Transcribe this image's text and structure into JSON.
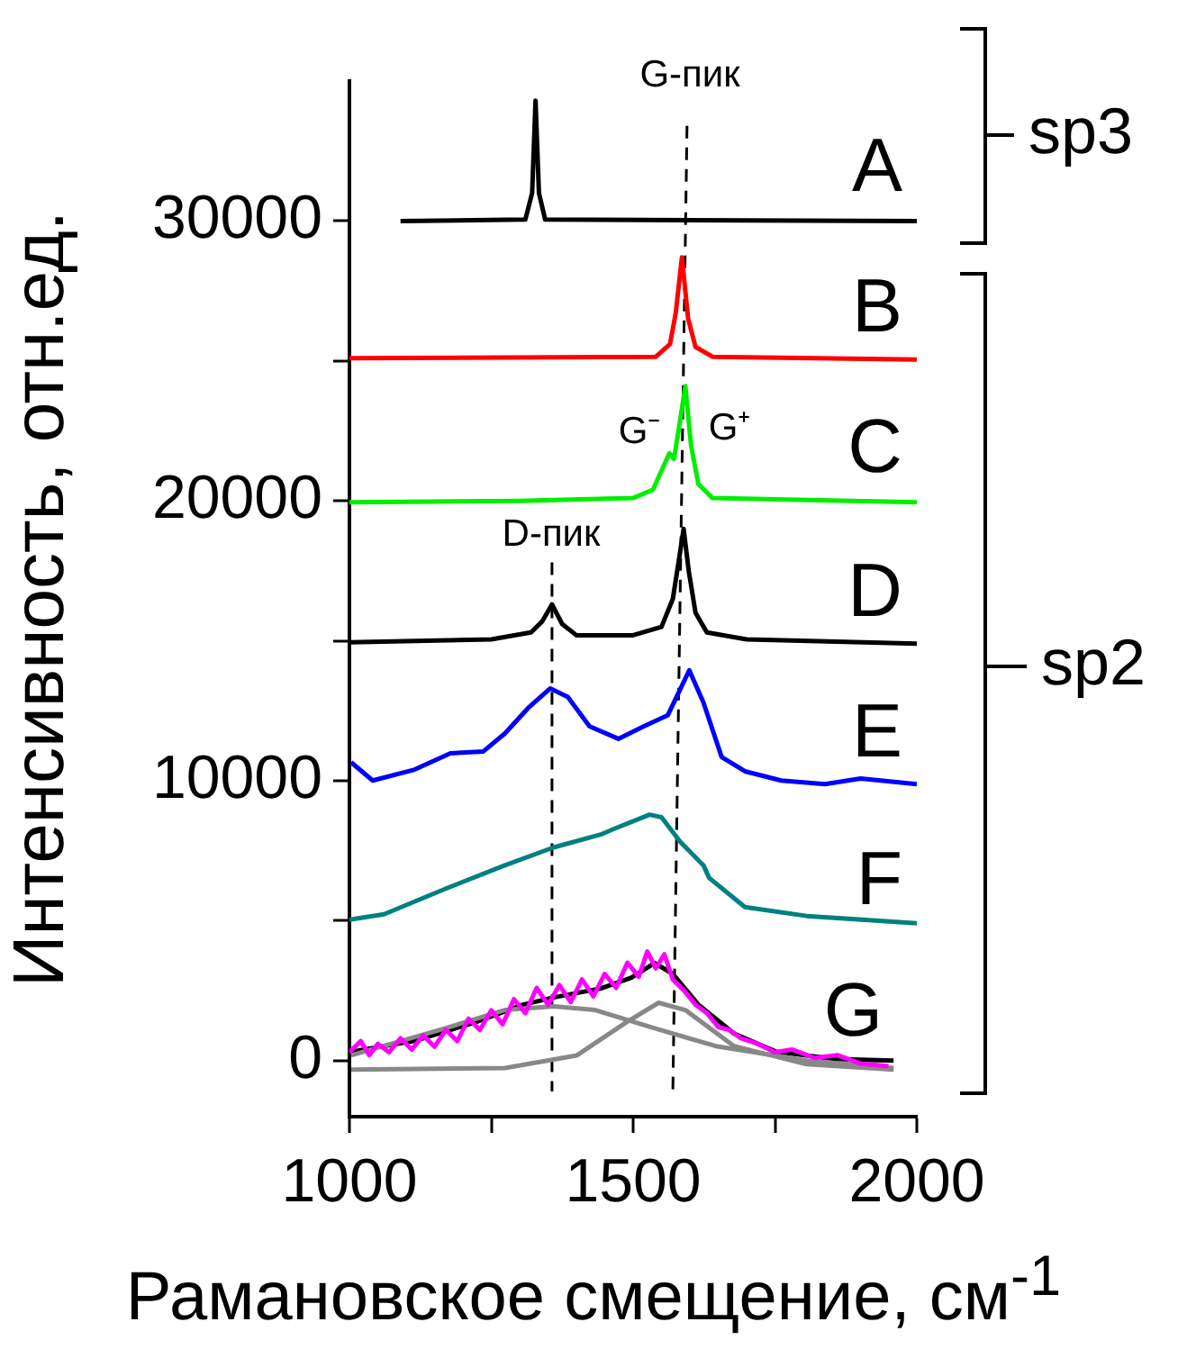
{
  "chart_data": {
    "type": "line",
    "xlabel": "Рамановское смещение, см$^{-1}$",
    "ylabel": "Интенсивность, отн.ед.",
    "xlim": [
      1000,
      2000
    ],
    "ylim": [
      -2000,
      35000
    ],
    "xticks": [
      1000,
      {
        "value": 1250,
        "label": null
      },
      1500,
      {
        "value": 1750,
        "label": null
      },
      2000
    ],
    "yticks": [
      0,
      {
        "value": 5000,
        "label": null
      },
      10000,
      {
        "value": 15000,
        "label": null
      },
      20000,
      {
        "value": 25000,
        "label": null
      },
      30000
    ],
    "marker": "none",
    "series": [
      {
        "color": "#000000",
        "x": [
          1090,
          1310,
          1322,
          1328,
          1334,
          1345,
          2000
        ],
        "values": [
          30000,
          30050,
          31000,
          34300,
          31000,
          30050,
          30000
        ]
      },
      {
        "color": "#ff0000",
        "x": [
          1000,
          1540,
          1565,
          1575,
          1586,
          1597,
          1610,
          1640,
          2000
        ],
        "values": [
          25100,
          25150,
          25600,
          26700,
          28700,
          26500,
          25500,
          25150,
          25050
        ]
      },
      {
        "color": "#00ee00",
        "x": [
          1000,
          1300,
          1500,
          1535,
          1555,
          1564,
          1572,
          1580,
          1592,
          1602,
          1615,
          1640,
          2000
        ],
        "values": [
          19950,
          20000,
          20100,
          20400,
          21300,
          21700,
          21500,
          22500,
          24100,
          22000,
          20600,
          20100,
          19950
        ]
      },
      {
        "color": "#000000",
        "x": [
          1000,
          1250,
          1320,
          1340,
          1357,
          1375,
          1400,
          1500,
          1550,
          1570,
          1580,
          1589,
          1598,
          1610,
          1630,
          1700,
          2000
        ],
        "values": [
          14950,
          15050,
          15300,
          15700,
          16300,
          15600,
          15200,
          15200,
          15500,
          16500,
          17800,
          19000,
          17500,
          16000,
          15300,
          15050,
          14900
        ]
      },
      {
        "color": "#0000ff",
        "x": [
          1003,
          1041,
          1115,
          1178,
          1236,
          1274,
          1315,
          1354,
          1385,
          1423,
          1474,
          1519,
          1561,
          1599,
          1624,
          1656,
          1697,
          1761,
          1838,
          1901,
          2000
        ],
        "values": [
          10660,
          10010,
          10400,
          10980,
          11050,
          11690,
          12600,
          13300,
          12990,
          11950,
          11500,
          11950,
          12340,
          13950,
          12790,
          10850,
          10340,
          10010,
          9880,
          10080,
          9880
        ]
      },
      {
        "color": "#008080",
        "x": [
          1000,
          1061,
          1169,
          1274,
          1360,
          1443,
          1465,
          1529,
          1550,
          1583,
          1624,
          1634,
          1697,
          1806,
          2000
        ],
        "values": [
          5040,
          5230,
          6140,
          6980,
          7620,
          8080,
          8270,
          8790,
          8700,
          7820,
          6980,
          6530,
          5490,
          5170,
          4910
        ]
      },
      {
        "color": "#ff00ff",
        "x": [
          1000,
          1020,
          1035,
          1050,
          1070,
          1090,
          1110,
          1130,
          1150,
          1170,
          1190,
          1210,
          1230,
          1250,
          1270,
          1290,
          1310,
          1330,
          1350,
          1370,
          1390,
          1410,
          1430,
          1450,
          1470,
          1490,
          1510,
          1525,
          1540,
          1555,
          1570,
          1590,
          1610,
          1630,
          1650,
          1670,
          1690,
          1720,
          1750,
          1780,
          1820,
          1860,
          1900,
          1950
        ],
        "values": [
          300,
          700,
          200,
          600,
          300,
          800,
          400,
          900,
          500,
          1100,
          700,
          1500,
          1100,
          1800,
          1300,
          2200,
          1700,
          2600,
          2000,
          2700,
          2100,
          2900,
          2300,
          3100,
          2600,
          3500,
          3000,
          3900,
          3300,
          3800,
          2900,
          2500,
          2000,
          1700,
          1200,
          1100,
          800,
          600,
          300,
          400,
          100,
          200,
          -100,
          -200
        ]
      },
      {
        "color": "#888888",
        "x": [
          1003,
          1169,
          1274,
          1360,
          1433,
          1538,
          1646,
          1806,
          1959
        ],
        "values": [
          190,
          1160,
          1810,
          1940,
          1810,
          1160,
          520,
          0,
          -260
        ]
      },
      {
        "color": "#888888",
        "x": [
          1003,
          1274,
          1401,
          1487,
          1545,
          1592,
          1678,
          1806,
          1959
        ],
        "values": [
          -320,
          -260,
          190,
          1360,
          2070,
          1810,
          520,
          -130,
          -320
        ]
      },
      {
        "color": "#000000",
        "x": [
          1003,
          1115,
          1220,
          1306,
          1360,
          1443,
          1497,
          1538,
          1570,
          1615,
          1678,
          1752,
          1857,
          1959
        ],
        "values": [
          320,
          710,
          1360,
          2000,
          2260,
          2580,
          2970,
          3490,
          3100,
          2000,
          970,
          320,
          60,
          0
        ]
      },
      {
        "color": "#000000",
        "line_style": "dashed",
        "x": [
          1595,
          1570
        ],
        "values": [
          33400,
          -1100
        ]
      },
      {
        "color": "#000000",
        "line_style": "dashed",
        "x": [
          1357,
          1357
        ],
        "values": [
          17800,
          -1100
        ]
      }
    ],
    "annotations": [
      "G-пик",
      "D-пик",
      "G⁻",
      "G⁺",
      "A",
      "B",
      "C",
      "D",
      "E",
      "F",
      "G",
      "sp3",
      "sp2"
    ]
  }
}
